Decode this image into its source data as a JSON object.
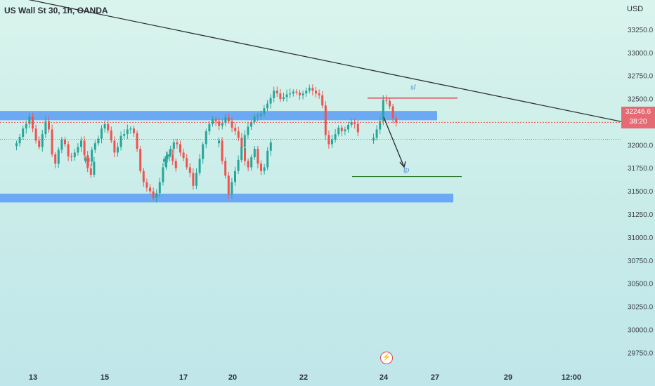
{
  "header": {
    "title": "US Wall St 30, 1h, OANDA",
    "currency": "USD"
  },
  "price_badge": {
    "price": "32246.6",
    "countdown": "38:20"
  },
  "events_icon": "lightning-icon",
  "colors": {
    "up": "#26a69a",
    "down": "#ef5350",
    "zone": "#5a9cf7",
    "trend_line": "#2e3338",
    "stop_line": "#e0424b",
    "target_line": "#2e7d32",
    "badge": "#e56a74"
  },
  "drawings": {
    "resistance_zone_label": "",
    "sl_label": "sl",
    "tp_label": "tp"
  },
  "chart_data": {
    "type": "candlestick",
    "title": "US Wall St 30, 1h, OANDA",
    "ylabel": "USD",
    "ylim": [
      29620,
      33420
    ],
    "yticks": [
      29750,
      30000,
      30250,
      30500,
      30750,
      31000,
      31250,
      31500,
      31750,
      32000,
      32250,
      32500,
      32750,
      33000,
      33250
    ],
    "ytick_labels": [
      "29750.0",
      "30000.0",
      "30250.0",
      "30500.0",
      "30750.0",
      "31000.0",
      "31250.0",
      "31500.0",
      "31750.0",
      "32000.0",
      "",
      "32500.0",
      "32750.0",
      "33000.0",
      "33250.0"
    ],
    "xtick_labels": [
      "13",
      "15",
      "17",
      "20",
      "22",
      "24",
      "27",
      "29",
      "12:00"
    ],
    "last_price": 32246.6,
    "zones": [
      {
        "name": "resistance",
        "y_low": 32270,
        "y_high": 32370
      },
      {
        "name": "support",
        "y_low": 31380,
        "y_high": 31475
      }
    ],
    "trendline": {
      "y_start": 33640,
      "y_end": 32255
    },
    "stop_level": 32510,
    "target_level": 31660,
    "series": [
      {
        "day": "13",
        "values": [
          32020,
          32090,
          32180,
          32230,
          32310,
          32180,
          32050,
          31980,
          32120,
          32260,
          32170,
          31900,
          31800,
          31950,
          32060,
          32010,
          31880,
          31870,
          31920,
          31980,
          32050,
          31890,
          31750,
          31680,
          31820
        ]
      },
      {
        "day": "15",
        "values": [
          31860,
          31820,
          31950,
          32020,
          32070,
          32180,
          32230,
          32160,
          32050,
          31920,
          31980,
          32100,
          32120,
          32170,
          32180,
          32130,
          31960,
          31720,
          31600,
          31540,
          31500,
          31430,
          31480,
          31600,
          31760,
          31880,
          31900,
          31830,
          31750
        ]
      },
      {
        "day": "17",
        "values": [
          31850,
          31900,
          31960,
          32030,
          32010,
          31920,
          31860,
          31760,
          31700,
          31560,
          31700,
          31850,
          32010,
          32150,
          32230,
          32280,
          32260,
          32210,
          32240,
          32300,
          32260,
          32190,
          32150,
          32080,
          31970,
          31830,
          31760,
          31870,
          31960,
          31800,
          31720,
          31760,
          31940,
          32030
        ]
      },
      {
        "day": "20",
        "values": [
          32050,
          31830,
          31670,
          31470,
          31600,
          31720,
          31840,
          31980,
          32110,
          32200,
          32250,
          32310,
          32320,
          32340,
          32400,
          32450,
          32510,
          32590,
          32560,
          32500,
          32520,
          32550,
          32560,
          32580,
          32570,
          32540,
          32560,
          32590,
          32620,
          32590,
          32560,
          32540,
          32430,
          32110,
          32010,
          32060,
          32120,
          32190,
          32150,
          32170,
          32220,
          32250,
          32230,
          32140
        ]
      },
      {
        "day": "24",
        "values": [
          32080,
          32170,
          32260,
          32490,
          32480,
          32420,
          32290,
          32246.6
        ]
      }
    ]
  }
}
